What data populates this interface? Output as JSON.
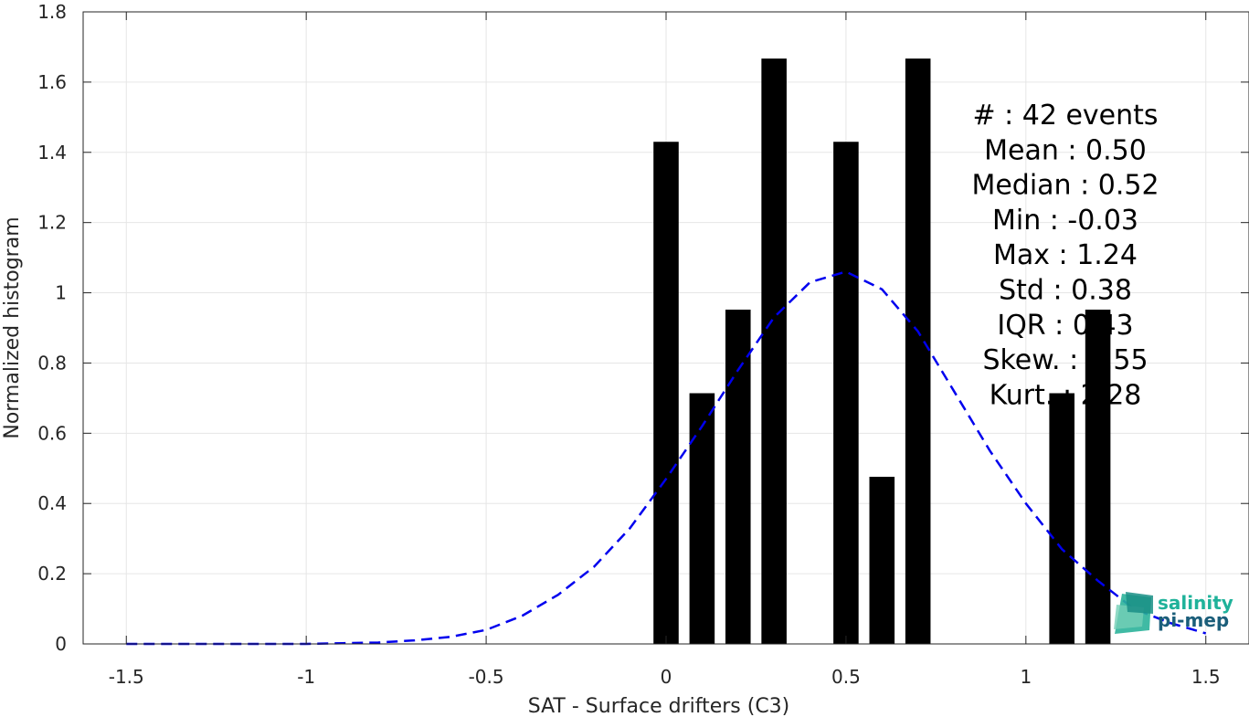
{
  "chart_data": {
    "type": "bar",
    "xlabel": "SAT - Surface drifters (C3)",
    "ylabel": "Normalized histogram",
    "xlim": [
      -1.62,
      1.62
    ],
    "ylim": [
      0,
      1.8
    ],
    "grid": true,
    "xticks": [
      -1.5,
      -1,
      -0.5,
      0,
      0.5,
      1,
      1.5
    ],
    "xtick_labels": [
      "-1.5",
      "-1",
      "-0.5",
      "0",
      "0.5",
      "1",
      "1.5"
    ],
    "yticks": [
      0,
      0.2,
      0.4,
      0.6,
      0.8,
      1,
      1.2,
      1.4,
      1.6,
      1.8
    ],
    "ytick_labels": [
      "0",
      "0.2",
      "0.4",
      "0.6",
      "0.8",
      "1",
      "1.2",
      "1.4",
      "1.6",
      "1.8"
    ],
    "bar_width": 0.07,
    "bar_color": "#000000",
    "bars": {
      "x": [
        0.0,
        0.1,
        0.2,
        0.3,
        0.5,
        0.6,
        0.7,
        1.1,
        1.2
      ],
      "values": [
        1.43,
        0.714,
        0.952,
        1.667,
        1.43,
        0.476,
        1.667,
        0.714,
        0.952
      ]
    },
    "fit_curve": {
      "style": "dashed",
      "color": "#0000ee",
      "x": [
        -1.5,
        -1.4,
        -1.3,
        -1.2,
        -1.1,
        -1.0,
        -0.9,
        -0.8,
        -0.7,
        -0.6,
        -0.5,
        -0.4,
        -0.3,
        -0.2,
        -0.1,
        0.0,
        0.1,
        0.2,
        0.3,
        0.4,
        0.5,
        0.6,
        0.7,
        0.8,
        0.9,
        1.0,
        1.1,
        1.2,
        1.3,
        1.4,
        1.5
      ],
      "y": [
        0.0,
        0.0,
        0.0,
        0.0,
        0.0,
        0.0,
        0.002,
        0.004,
        0.01,
        0.02,
        0.04,
        0.08,
        0.14,
        0.22,
        0.33,
        0.47,
        0.62,
        0.78,
        0.93,
        1.03,
        1.06,
        1.01,
        0.89,
        0.72,
        0.55,
        0.4,
        0.27,
        0.18,
        0.1,
        0.06,
        0.03
      ]
    },
    "stats": [
      "#  : 42 events",
      "Mean : 0.50",
      "Median : 0.52",
      "Min : -0.03",
      "Max : 1.24",
      "Std : 0.38",
      "IQR : 0.43",
      "Skew. : 0.55",
      "Kurt. : 2.28"
    ]
  },
  "logo": {
    "line1": "salinity",
    "line2": "pi-mep",
    "color1": "#1fb29a",
    "color2": "#1b5e7a"
  }
}
